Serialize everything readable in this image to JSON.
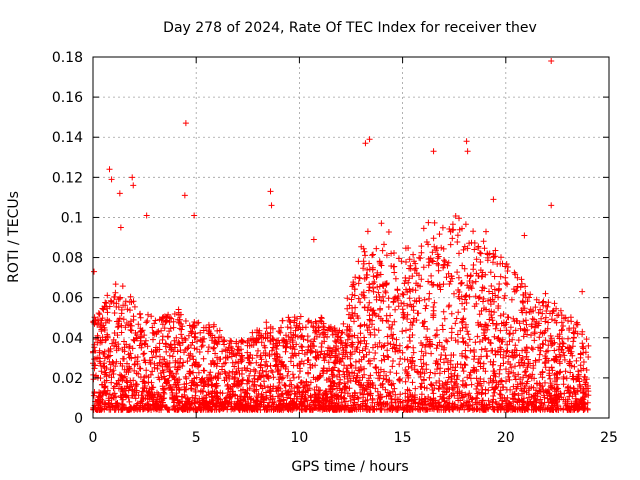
{
  "chart_data": {
    "type": "scatter",
    "title": "Day 278 of 2024, Rate Of TEC Index for receiver thev",
    "xlabel": "GPS time / hours",
    "ylabel": "ROTI / TECUs",
    "xlim": [
      0,
      25
    ],
    "ylim": [
      0,
      0.18
    ],
    "x_ticks": [
      "0",
      "5",
      "10",
      "15",
      "20",
      "25"
    ],
    "y_ticks": [
      "0",
      "0.02",
      "0.04",
      "0.06",
      "0.08",
      "0.1",
      "0.12",
      "0.14",
      "0.16",
      "0.18"
    ],
    "grid": true,
    "marker": "+",
    "color": "#ff0000",
    "series": [
      {
        "name": "ROTI",
        "x_range": [
          0,
          24
        ],
        "density_profile_hours": [
          0,
          1,
          2,
          3,
          4,
          5,
          6,
          7,
          8,
          9,
          10,
          11,
          12,
          13,
          14,
          15,
          16,
          17,
          18,
          19,
          20,
          21,
          22,
          23,
          24
        ],
        "typical_max": [
          0.045,
          0.06,
          0.055,
          0.045,
          0.05,
          0.045,
          0.04,
          0.035,
          0.04,
          0.045,
          0.045,
          0.045,
          0.04,
          0.08,
          0.085,
          0.075,
          0.085,
          0.09,
          0.095,
          0.085,
          0.075,
          0.06,
          0.055,
          0.045,
          0.04
        ],
        "notable_points": [
          {
            "x": 0.05,
            "y": 0.073
          },
          {
            "x": 0.8,
            "y": 0.124
          },
          {
            "x": 0.9,
            "y": 0.119
          },
          {
            "x": 1.3,
            "y": 0.112
          },
          {
            "x": 1.35,
            "y": 0.095
          },
          {
            "x": 1.9,
            "y": 0.12
          },
          {
            "x": 1.95,
            "y": 0.116
          },
          {
            "x": 2.6,
            "y": 0.101
          },
          {
            "x": 4.5,
            "y": 0.147
          },
          {
            "x": 4.45,
            "y": 0.111
          },
          {
            "x": 4.9,
            "y": 0.101
          },
          {
            "x": 8.6,
            "y": 0.113
          },
          {
            "x": 8.65,
            "y": 0.106
          },
          {
            "x": 10.7,
            "y": 0.089
          },
          {
            "x": 13.2,
            "y": 0.137
          },
          {
            "x": 13.4,
            "y": 0.139
          },
          {
            "x": 16.5,
            "y": 0.133
          },
          {
            "x": 18.1,
            "y": 0.138
          },
          {
            "x": 18.15,
            "y": 0.133
          },
          {
            "x": 19.4,
            "y": 0.109
          },
          {
            "x": 20.9,
            "y": 0.091
          },
          {
            "x": 22.2,
            "y": 0.178
          },
          {
            "x": 22.2,
            "y": 0.106
          },
          {
            "x": 23.7,
            "y": 0.063
          }
        ]
      }
    ]
  }
}
